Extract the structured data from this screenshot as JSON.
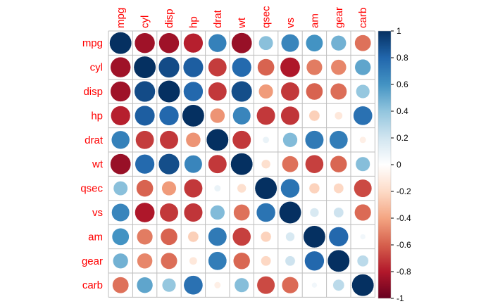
{
  "chart_data": {
    "type": "heatmap",
    "style": "correlation-circles",
    "variables": [
      "mpg",
      "cyl",
      "disp",
      "hp",
      "drat",
      "wt",
      "qsec",
      "vs",
      "am",
      "gear",
      "carb"
    ],
    "matrix": [
      [
        1.0,
        -0.85,
        -0.85,
        -0.78,
        0.68,
        -0.87,
        0.42,
        0.66,
        0.6,
        0.48,
        -0.55
      ],
      [
        -0.85,
        1.0,
        0.9,
        0.83,
        -0.7,
        0.78,
        -0.59,
        -0.81,
        -0.52,
        -0.49,
        0.53
      ],
      [
        -0.85,
        0.9,
        1.0,
        0.79,
        -0.71,
        0.89,
        -0.43,
        -0.71,
        -0.59,
        -0.56,
        0.39
      ],
      [
        -0.78,
        0.83,
        0.79,
        1.0,
        -0.45,
        0.66,
        -0.71,
        -0.72,
        -0.24,
        -0.13,
        0.75
      ],
      [
        0.68,
        -0.7,
        -0.71,
        -0.45,
        1.0,
        -0.71,
        0.09,
        0.44,
        0.71,
        0.7,
        -0.09
      ],
      [
        -0.87,
        0.78,
        0.89,
        0.66,
        -0.71,
        1.0,
        -0.17,
        -0.55,
        -0.69,
        -0.58,
        0.43
      ],
      [
        0.42,
        -0.59,
        -0.43,
        -0.71,
        0.09,
        -0.17,
        1.0,
        0.74,
        -0.23,
        -0.21,
        -0.66
      ],
      [
        0.66,
        -0.81,
        -0.71,
        -0.72,
        0.44,
        -0.55,
        0.74,
        1.0,
        0.17,
        0.21,
        -0.57
      ],
      [
        0.6,
        -0.52,
        -0.59,
        -0.24,
        0.71,
        -0.69,
        -0.23,
        0.17,
        1.0,
        0.79,
        0.06
      ],
      [
        0.48,
        -0.49,
        -0.56,
        -0.13,
        0.7,
        -0.58,
        -0.21,
        0.21,
        0.79,
        1.0,
        0.27
      ],
      [
        -0.55,
        0.53,
        0.39,
        0.75,
        -0.09,
        0.43,
        -0.66,
        -0.57,
        0.06,
        0.27,
        1.0
      ]
    ],
    "colorbar": {
      "range": [
        -1,
        1
      ],
      "ticks": [
        "-1",
        "-0.8",
        "-0.6",
        "-0.4",
        "-0.2",
        "0",
        "0.2",
        "0.4",
        "0.6",
        "0.8",
        "1"
      ]
    },
    "colors": {
      "negative_end": "#67001f",
      "neg_mid1": "#b2182b",
      "neg_mid2": "#d6604d",
      "neg_mid3": "#f4a582",
      "neg_light": "#fddbc7",
      "zero": "#ffffff",
      "pos_light": "#d1e5f0",
      "pos_mid3": "#92c5de",
      "pos_mid2": "#4393c3",
      "pos_mid1": "#2166ac",
      "positive_end": "#053061",
      "label": "#ff0000",
      "grid": "#bebebe"
    }
  }
}
